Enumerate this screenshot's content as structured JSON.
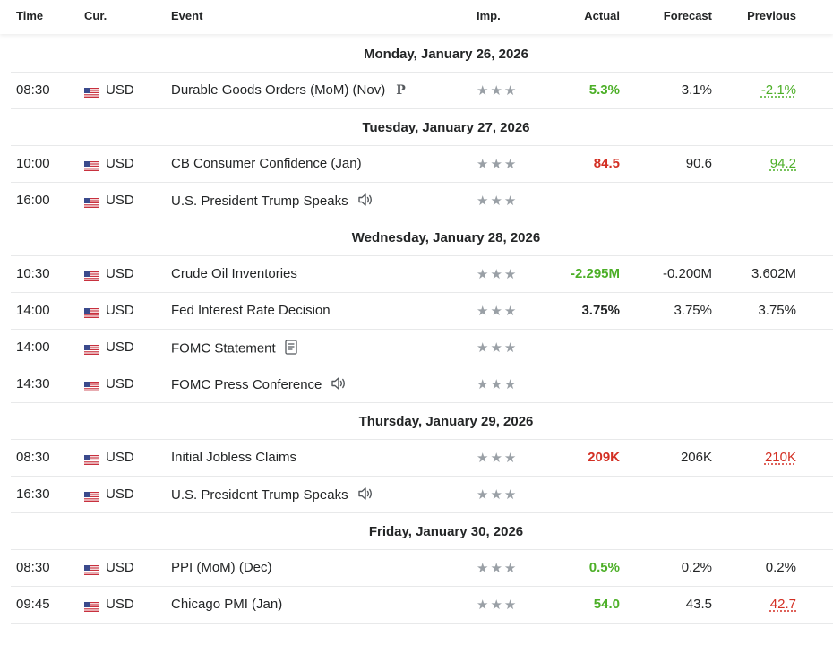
{
  "header": {
    "time": "Time",
    "currency": "Cur.",
    "event": "Event",
    "importance": "Imp.",
    "actual": "Actual",
    "forecast": "Forecast",
    "previous": "Previous"
  },
  "colors": {
    "positive": "#4caf27",
    "negative": "#d32f23",
    "text": "#232526",
    "star": "#9aa0a6",
    "divider": "#e8e9ea"
  },
  "days": [
    {
      "date": "Monday, January 26, 2026",
      "events": [
        {
          "time": "08:30",
          "currency": "USD",
          "event": "Durable Goods Orders (MoM) (Nov)",
          "icon": "preliminary-icon",
          "icon_text": "P",
          "stars": "★★★",
          "actual": "5.3%",
          "actual_color": "green",
          "forecast": "3.1%",
          "previous": "-2.1%",
          "previous_style": "underline-green"
        }
      ]
    },
    {
      "date": "Tuesday, January 27, 2026",
      "events": [
        {
          "time": "10:00",
          "currency": "USD",
          "event": "CB Consumer Confidence  (Jan)",
          "icon": "",
          "icon_text": "",
          "stars": "★★★",
          "actual": "84.5",
          "actual_color": "red",
          "forecast": "90.6",
          "previous": "94.2",
          "previous_style": "underline-green"
        },
        {
          "time": "16:00",
          "currency": "USD",
          "event": "U.S. President Trump Speaks",
          "icon": "speaker-icon",
          "icon_text": "",
          "stars": "★★★",
          "actual": "",
          "actual_color": "dark",
          "forecast": "",
          "previous": "",
          "previous_style": ""
        }
      ]
    },
    {
      "date": "Wednesday, January 28, 2026",
      "events": [
        {
          "time": "10:30",
          "currency": "USD",
          "event": "Crude Oil Inventories",
          "icon": "",
          "icon_text": "",
          "stars": "★★★",
          "actual": "-2.295M",
          "actual_color": "green",
          "forecast": "-0.200M",
          "previous": "3.602M",
          "previous_style": ""
        },
        {
          "time": "14:00",
          "currency": "USD",
          "event": "Fed Interest Rate Decision",
          "icon": "",
          "icon_text": "",
          "stars": "★★★",
          "actual": "3.75%",
          "actual_color": "dark",
          "forecast": "3.75%",
          "previous": "3.75%",
          "previous_style": ""
        },
        {
          "time": "14:00",
          "currency": "USD",
          "event": "FOMC Statement",
          "icon": "document-icon",
          "icon_text": "",
          "stars": "★★★",
          "actual": "",
          "actual_color": "dark",
          "forecast": "",
          "previous": "",
          "previous_style": ""
        },
        {
          "time": "14:30",
          "currency": "USD",
          "event": "FOMC Press Conference",
          "icon": "speaker-icon",
          "icon_text": "",
          "stars": "★★★",
          "actual": "",
          "actual_color": "dark",
          "forecast": "",
          "previous": "",
          "previous_style": ""
        }
      ]
    },
    {
      "date": "Thursday, January 29, 2026",
      "events": [
        {
          "time": "08:30",
          "currency": "USD",
          "event": "Initial Jobless Claims",
          "icon": "",
          "icon_text": "",
          "stars": "★★★",
          "actual": "209K",
          "actual_color": "red",
          "forecast": "206K",
          "previous": "210K",
          "previous_style": "underline-red"
        },
        {
          "time": "16:30",
          "currency": "USD",
          "event": "U.S. President Trump Speaks",
          "icon": "speaker-icon",
          "icon_text": "",
          "stars": "★★★",
          "actual": "",
          "actual_color": "dark",
          "forecast": "",
          "previous": "",
          "previous_style": ""
        }
      ]
    },
    {
      "date": "Friday, January 30, 2026",
      "events": [
        {
          "time": "08:30",
          "currency": "USD",
          "event": "PPI (MoM) (Dec)",
          "icon": "",
          "icon_text": "",
          "stars": "★★★",
          "actual": "0.5%",
          "actual_color": "green",
          "forecast": "0.2%",
          "previous": "0.2%",
          "previous_style": ""
        },
        {
          "time": "09:45",
          "currency": "USD",
          "event": "Chicago PMI  (Jan)",
          "icon": "",
          "icon_text": "",
          "stars": "★★★",
          "actual": "54.0",
          "actual_color": "green",
          "forecast": "43.5",
          "previous": "42.7",
          "previous_style": "underline-red"
        }
      ]
    }
  ]
}
